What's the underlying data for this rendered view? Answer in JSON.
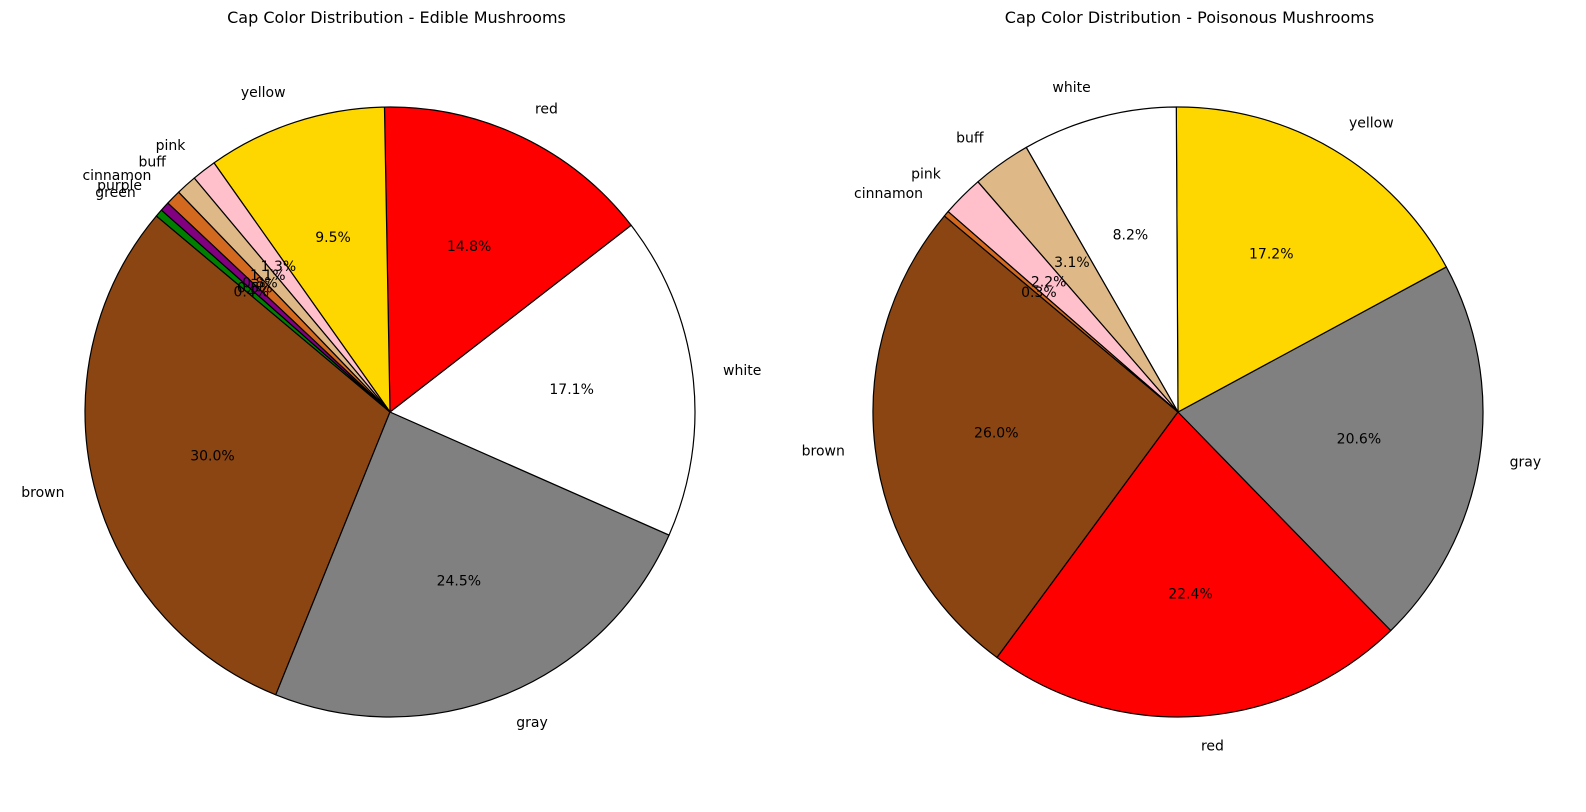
{
  "chart_data": [
    {
      "type": "pie",
      "title": "Cap Color Distribution - Edible Mushrooms",
      "categories": [
        "brown",
        "gray",
        "white",
        "red",
        "yellow",
        "pink",
        "buff",
        "cinnamon",
        "purple",
        "green"
      ],
      "values": [
        30.0,
        24.5,
        17.1,
        14.8,
        9.5,
        1.3,
        1.1,
        0.8,
        0.5,
        0.4
      ],
      "pct_labels": [
        "30.0%",
        "24.5%",
        "17.1%",
        "14.8%",
        "9.5%",
        "1.3%",
        "1.1%",
        "0.8%",
        "0.5%",
        "0.4%"
      ],
      "colors": [
        "#8B4513",
        "#808080",
        "#FFFFFF",
        "#FF0000",
        "#FFD700",
        "#FFC0CB",
        "#DEB887",
        "#D2691E",
        "#800080",
        "#008000"
      ],
      "start_angle_deg": 140,
      "direction": "counterclockwise",
      "edge_color": "#000000"
    },
    {
      "type": "pie",
      "title": "Cap Color Distribution - Poisonous Mushrooms",
      "categories": [
        "brown",
        "red",
        "gray",
        "yellow",
        "white",
        "buff",
        "pink",
        "cinnamon"
      ],
      "values": [
        26.0,
        22.4,
        20.6,
        17.2,
        8.2,
        3.1,
        2.2,
        0.3
      ],
      "pct_labels": [
        "26.0%",
        "22.4%",
        "20.6%",
        "17.2%",
        "8.2%",
        "3.1%",
        "2.2%",
        "0.3%"
      ],
      "colors": [
        "#8B4513",
        "#FF0000",
        "#808080",
        "#FFD700",
        "#FFFFFF",
        "#DEB887",
        "#FFC0CB",
        "#D2691E"
      ],
      "start_angle_deg": 140,
      "direction": "counterclockwise",
      "edge_color": "#000000"
    }
  ]
}
